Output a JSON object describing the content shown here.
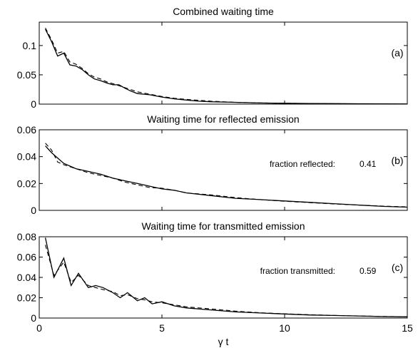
{
  "chart_data": [
    {
      "type": "line",
      "title": "Combined waiting time",
      "panel_label": "(a)",
      "xlim": [
        0,
        15
      ],
      "ylim": [
        0,
        0.14
      ],
      "yticks": [
        0,
        0.05,
        0.1
      ],
      "ytick_labels": [
        "0",
        "0.05",
        "0.1"
      ],
      "annotation_label": "",
      "annotation_value": "",
      "series": [
        {
          "style": "solid",
          "x": [
            0.25,
            0.5,
            0.75,
            1.0,
            1.25,
            1.5,
            1.75,
            2.0,
            2.25,
            2.5,
            2.75,
            3.0,
            3.25,
            3.5,
            3.75,
            4.0,
            4.5,
            5.0,
            5.5,
            6.0,
            6.5,
            7.0,
            8.0,
            9.0,
            10.0,
            11.0,
            12.0,
            13.0,
            14.0,
            15.0
          ],
          "y": [
            0.128,
            0.107,
            0.082,
            0.087,
            0.067,
            0.065,
            0.059,
            0.05,
            0.043,
            0.04,
            0.036,
            0.033,
            0.033,
            0.027,
            0.022,
            0.018,
            0.016,
            0.012,
            0.009,
            0.007,
            0.005,
            0.004,
            0.003,
            0.002,
            0.0015,
            0.001,
            0.0008,
            0.0006,
            0.0004,
            0.0003
          ]
        },
        {
          "style": "dashed",
          "x": [
            0.25,
            0.5,
            0.75,
            1.0,
            1.25,
            1.5,
            1.75,
            2.0,
            2.25,
            2.5,
            2.75,
            3.0,
            3.5,
            4.0,
            4.5,
            5.0,
            5.5,
            6.0,
            7.0,
            8.0,
            9.0,
            10.0,
            11.0,
            12.0,
            13.0,
            14.0,
            15.0
          ],
          "y": [
            0.13,
            0.11,
            0.087,
            0.09,
            0.072,
            0.068,
            0.061,
            0.052,
            0.046,
            0.043,
            0.038,
            0.035,
            0.028,
            0.021,
            0.017,
            0.013,
            0.01,
            0.008,
            0.005,
            0.003,
            0.002,
            0.0014,
            0.001,
            0.0007,
            0.0005,
            0.0003,
            0.0002
          ]
        }
      ]
    },
    {
      "type": "line",
      "title": "Waiting time for reflected emission",
      "panel_label": "(b)",
      "xlim": [
        0,
        15
      ],
      "ylim": [
        0,
        0.06
      ],
      "yticks": [
        0,
        0.02,
        0.04,
        0.06
      ],
      "ytick_labels": [
        "0",
        "0.02",
        "0.04",
        "0.06"
      ],
      "annotation_label": "fraction reflected:",
      "annotation_value": "0.41",
      "series": [
        {
          "style": "solid",
          "x": [
            0.25,
            0.5,
            0.75,
            1.0,
            1.5,
            2.0,
            2.5,
            3.0,
            3.5,
            4.0,
            4.5,
            5.0,
            5.5,
            6.0,
            7.0,
            8.0,
            9.0,
            10.0,
            11.0,
            12.0,
            13.0,
            14.0,
            15.0
          ],
          "y": [
            0.048,
            0.043,
            0.039,
            0.035,
            0.031,
            0.029,
            0.027,
            0.024,
            0.022,
            0.02,
            0.018,
            0.016,
            0.015,
            0.013,
            0.011,
            0.009,
            0.008,
            0.007,
            0.006,
            0.005,
            0.004,
            0.003,
            0.0024
          ]
        },
        {
          "style": "dashed",
          "x": [
            0.25,
            0.5,
            0.75,
            1.0,
            1.5,
            2.0,
            2.5,
            3.0,
            3.5,
            4.0,
            4.5,
            5.0,
            5.5,
            6.0,
            7.0,
            8.0,
            9.0,
            10.0,
            11.0,
            12.0,
            13.0,
            14.0,
            15.0
          ],
          "y": [
            0.05,
            0.045,
            0.036,
            0.034,
            0.031,
            0.028,
            0.026,
            0.024,
            0.021,
            0.019,
            0.017,
            0.0165,
            0.015,
            0.013,
            0.0115,
            0.0095,
            0.008,
            0.0068,
            0.0058,
            0.0048,
            0.004,
            0.0032,
            0.0026
          ]
        }
      ]
    },
    {
      "type": "line",
      "title": "Waiting time for transmitted emission",
      "panel_label": "(c)",
      "xlim": [
        0,
        15
      ],
      "ylim": [
        0,
        0.08
      ],
      "yticks": [
        0,
        0.02,
        0.04,
        0.06,
        0.08
      ],
      "ytick_labels": [
        "0",
        "0.02",
        "0.04",
        "0.06",
        "0.08"
      ],
      "xticks": [
        0,
        5,
        10,
        15
      ],
      "xtick_labels": [
        "0",
        "5",
        "10",
        "15"
      ],
      "xlabel": "γ t",
      "annotation_label": "fraction transmitted:",
      "annotation_value": "0.59",
      "series": [
        {
          "style": "solid",
          "x": [
            0.25,
            0.6,
            1.0,
            1.3,
            1.6,
            2.0,
            2.3,
            2.6,
            3.0,
            3.3,
            3.6,
            4.0,
            4.3,
            4.6,
            5.0,
            5.5,
            6.0,
            7.0,
            8.0,
            9.0,
            10.0,
            11.0,
            12.0,
            13.0,
            14.0,
            15.0
          ],
          "y": [
            0.079,
            0.04,
            0.059,
            0.032,
            0.044,
            0.03,
            0.032,
            0.03,
            0.025,
            0.02,
            0.025,
            0.017,
            0.02,
            0.014,
            0.016,
            0.012,
            0.01,
            0.008,
            0.006,
            0.005,
            0.004,
            0.003,
            0.0025,
            0.002,
            0.0015,
            0.0012
          ]
        },
        {
          "style": "dashed",
          "x": [
            0.25,
            0.6,
            1.0,
            1.3,
            1.6,
            2.0,
            2.3,
            2.6,
            3.0,
            3.3,
            3.6,
            4.0,
            4.3,
            4.6,
            5.0,
            5.5,
            6.0,
            7.0,
            8.0,
            9.0,
            10.0,
            11.0,
            12.0,
            13.0,
            14.0,
            15.0
          ],
          "y": [
            0.072,
            0.042,
            0.055,
            0.035,
            0.042,
            0.032,
            0.03,
            0.028,
            0.026,
            0.022,
            0.023,
            0.019,
            0.018,
            0.016,
            0.015,
            0.013,
            0.011,
            0.009,
            0.0068,
            0.0052,
            0.0042,
            0.0033,
            0.0026,
            0.002,
            0.0016,
            0.0012
          ]
        }
      ]
    }
  ]
}
